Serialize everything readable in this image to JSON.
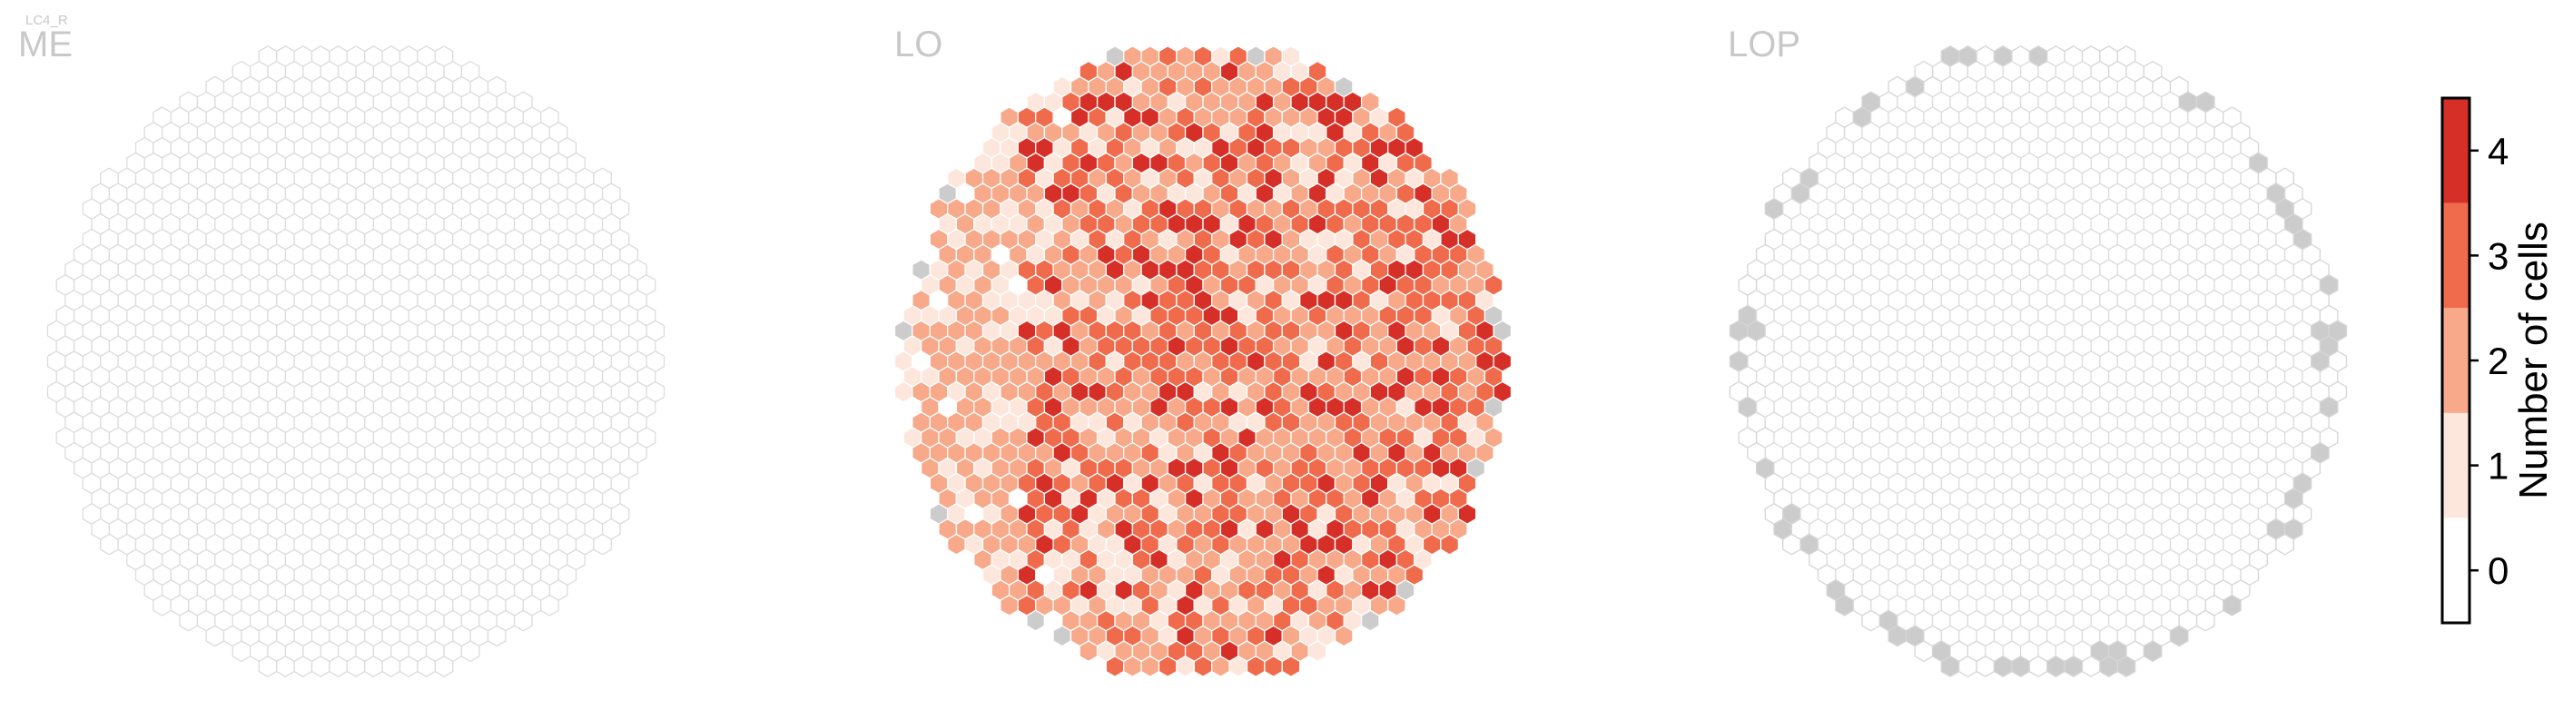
{
  "figure": {
    "tag": "LC4_R",
    "panels": [
      {
        "name": "ME"
      },
      {
        "name": "LO"
      },
      {
        "name": "LOP"
      }
    ]
  },
  "colorbar": {
    "title": "Number of cells",
    "ticks": [
      "0",
      "1",
      "2",
      "3",
      "4"
    ]
  },
  "chart_data": {
    "type": "heatmap",
    "title": "LC4_R",
    "panels": [
      "ME",
      "LO",
      "LOP"
    ],
    "color_scale": {
      "label": "Number of cells",
      "min": -0.5,
      "max": 4.5,
      "ticks": [
        0,
        1,
        2,
        3,
        4
      ],
      "levels": [
        {
          "value": 0,
          "color": "#ffffff"
        },
        {
          "value": 1,
          "color": "#fde7dc"
        },
        {
          "value": 2,
          "color": "#f7a98a"
        },
        {
          "value": 3,
          "color": "#f06a4c"
        },
        {
          "value": 4,
          "color": "#d62f27"
        }
      ]
    },
    "empty_color": "#ffffff",
    "empty_edge_color": "#dcdcdc",
    "outside_color": "#cccccc",
    "series": [
      {
        "panel": "ME",
        "dominant_value": 0,
        "description_counts": {
          "0": "all columns"
        }
      },
      {
        "panel": "LO",
        "distribution": {
          "0": 0.04,
          "1": 0.22,
          "2": 0.33,
          "3": 0.28,
          "4": 0.13
        }
      },
      {
        "panel": "LOP",
        "dominant_value": 0,
        "boundary_grey_columns": true
      }
    ]
  }
}
